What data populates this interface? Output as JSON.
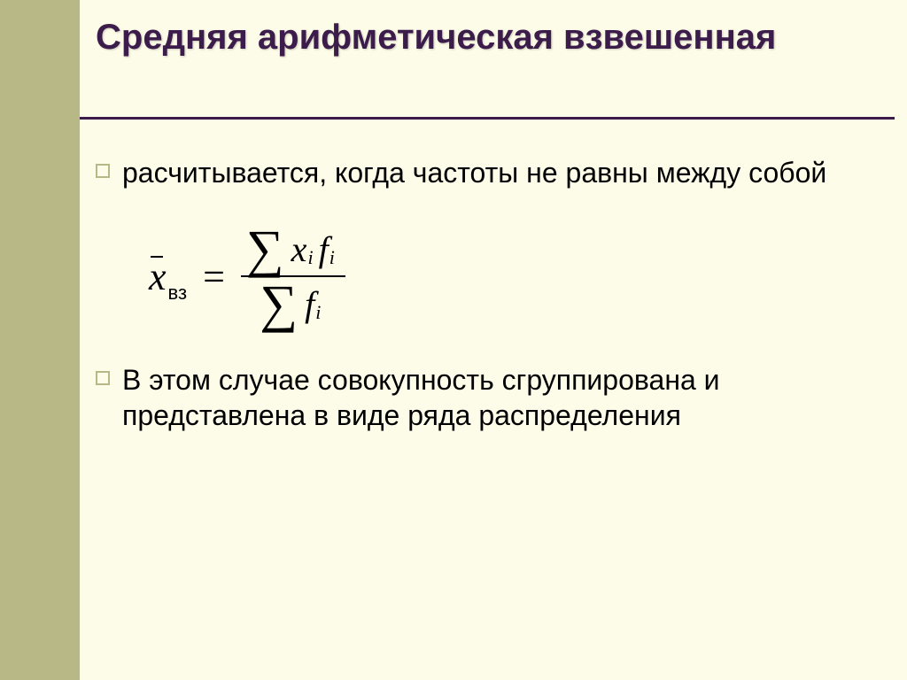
{
  "colors": {
    "background": "#fcfce8",
    "sidebar": "#b8b887",
    "title": "#3b1c4a",
    "rule": "#3b1c4a",
    "bullet_border": "#b8b887",
    "text": "#000000"
  },
  "title": "Средняя арифметическая взвешенная",
  "bullets": {
    "b1": "расчитывается, когда частоты не равны между собой",
    "b2": "В этом случае совокупность сгруппирована и представлена в виде ряда распределения"
  },
  "formula": {
    "lhs_var": "x",
    "lhs_sub": "вз",
    "equals": "=",
    "sum_glyph": "∑",
    "num_v1": "x",
    "num_s1": "i",
    "num_v2": "f",
    "num_s2": "i",
    "den_v1": "f",
    "den_s1": "i"
  }
}
